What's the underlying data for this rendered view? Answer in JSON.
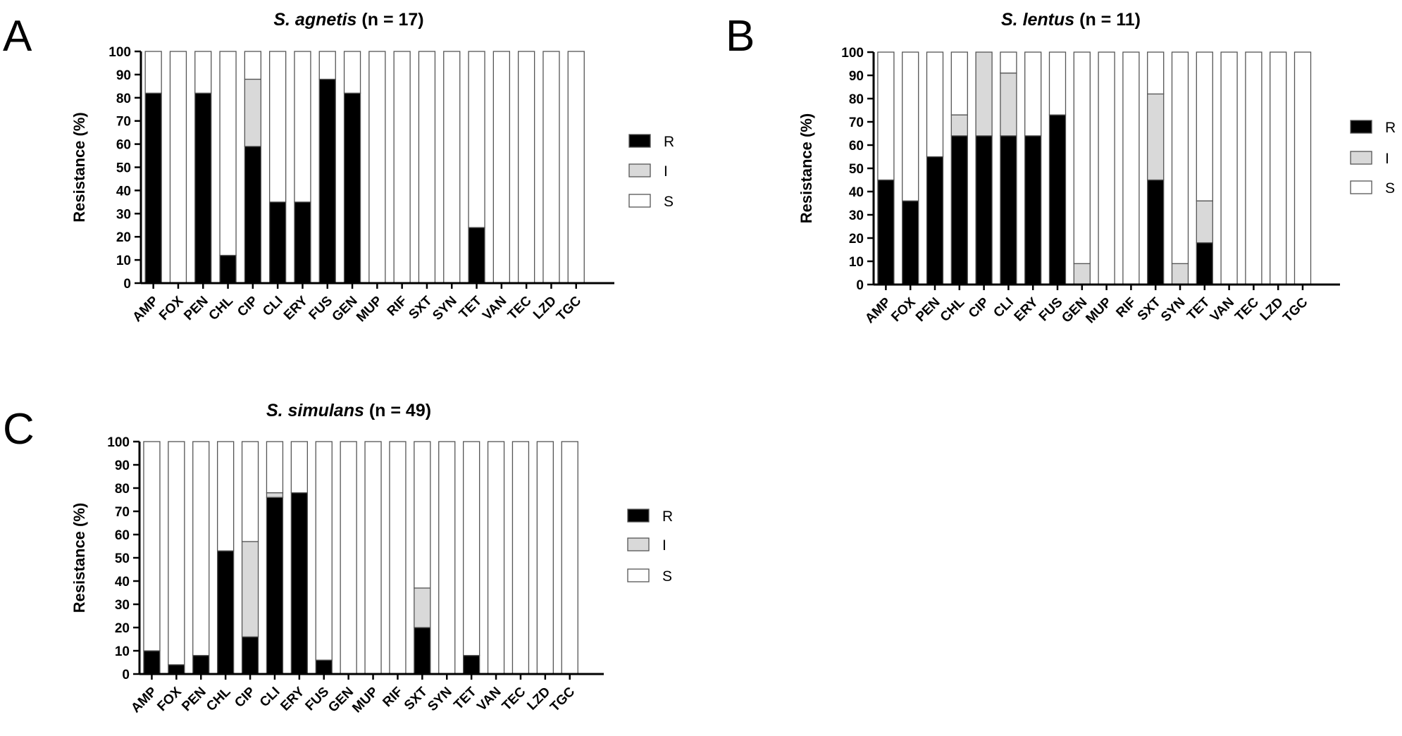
{
  "chart_data": [
    {
      "panel": "A",
      "type": "bar",
      "stacked": true,
      "title_species": "S. agnetis",
      "title_rest": " (n = 17)",
      "ylabel": "Resistance (%)",
      "ylim": [
        0,
        100
      ],
      "yticks": [
        "0",
        "10",
        "20",
        "30",
        "40",
        "50",
        "60",
        "70",
        "80",
        "90",
        "100"
      ],
      "categories": [
        "AMP",
        "FOX",
        "PEN",
        "CHL",
        "CIP",
        "CLI",
        "ERY",
        "FUS",
        "GEN",
        "MUP",
        "RIF",
        "SXT",
        "SYN",
        "TET",
        "VAN",
        "TEC",
        "LZD",
        "TGC"
      ],
      "series": [
        {
          "name": "R",
          "color": "#000000",
          "values": [
            82,
            0,
            82,
            12,
            59,
            35,
            35,
            88,
            82,
            0,
            0,
            0,
            0,
            24,
            0,
            0,
            0,
            0
          ]
        },
        {
          "name": "I",
          "color": "#d9d9d9",
          "values": [
            0,
            0,
            0,
            0,
            29,
            0,
            0,
            0,
            0,
            0,
            0,
            0,
            0,
            0,
            0,
            0,
            0,
            0
          ]
        },
        {
          "name": "S",
          "color": "#ffffff",
          "values": [
            18,
            100,
            18,
            88,
            12,
            65,
            65,
            12,
            18,
            100,
            100,
            100,
            100,
            76,
            100,
            100,
            100,
            100
          ]
        }
      ],
      "legend": "right"
    },
    {
      "panel": "B",
      "type": "bar",
      "stacked": true,
      "title_species": "S. lentus",
      "title_rest": " (n = 11)",
      "ylabel": "Resistance (%)",
      "ylim": [
        0,
        100
      ],
      "yticks": [
        "0",
        "10",
        "20",
        "30",
        "40",
        "50",
        "60",
        "70",
        "80",
        "90",
        "100"
      ],
      "categories": [
        "AMP",
        "FOX",
        "PEN",
        "CHL",
        "CIP",
        "CLI",
        "ERY",
        "FUS",
        "GEN",
        "MUP",
        "RIF",
        "SXT",
        "SYN",
        "TET",
        "VAN",
        "TEC",
        "LZD",
        "TGC"
      ],
      "series": [
        {
          "name": "R",
          "color": "#000000",
          "values": [
            45,
            36,
            55,
            64,
            64,
            64,
            64,
            73,
            0,
            0,
            0,
            45,
            0,
            18,
            0,
            0,
            0,
            0
          ]
        },
        {
          "name": "I",
          "color": "#d9d9d9",
          "values": [
            0,
            0,
            0,
            9,
            36,
            27,
            0,
            0,
            9,
            0,
            0,
            37,
            9,
            18,
            0,
            0,
            0,
            0
          ]
        },
        {
          "name": "S",
          "color": "#ffffff",
          "values": [
            55,
            64,
            45,
            27,
            0,
            9,
            36,
            27,
            91,
            100,
            100,
            18,
            91,
            64,
            100,
            100,
            100,
            100
          ]
        }
      ],
      "legend": "right"
    },
    {
      "panel": "C",
      "type": "bar",
      "stacked": true,
      "title_species": "S. simulans",
      "title_rest": " (n = 49)",
      "ylabel": "Resistance (%)",
      "ylim": [
        0,
        100
      ],
      "yticks": [
        "0",
        "10",
        "20",
        "30",
        "40",
        "50",
        "60",
        "70",
        "80",
        "90",
        "100"
      ],
      "categories": [
        "AMP",
        "FOX",
        "PEN",
        "CHL",
        "CIP",
        "CLI",
        "ERY",
        "FUS",
        "GEN",
        "MUP",
        "RIF",
        "SXT",
        "SYN",
        "TET",
        "VAN",
        "TEC",
        "LZD",
        "TGC"
      ],
      "series": [
        {
          "name": "R",
          "color": "#000000",
          "values": [
            10,
            4,
            8,
            53,
            16,
            76,
            78,
            6,
            0,
            0,
            0,
            20,
            0,
            8,
            0,
            0,
            0,
            0
          ]
        },
        {
          "name": "I",
          "color": "#d9d9d9",
          "values": [
            0,
            0,
            0,
            0,
            41,
            2,
            0,
            0,
            0,
            0,
            0,
            17,
            0,
            0,
            0,
            0,
            0,
            0
          ]
        },
        {
          "name": "S",
          "color": "#ffffff",
          "values": [
            90,
            96,
            92,
            47,
            43,
            22,
            22,
            94,
            100,
            100,
            100,
            63,
            100,
            92,
            100,
            100,
            100,
            100
          ]
        }
      ],
      "legend": "right"
    }
  ]
}
